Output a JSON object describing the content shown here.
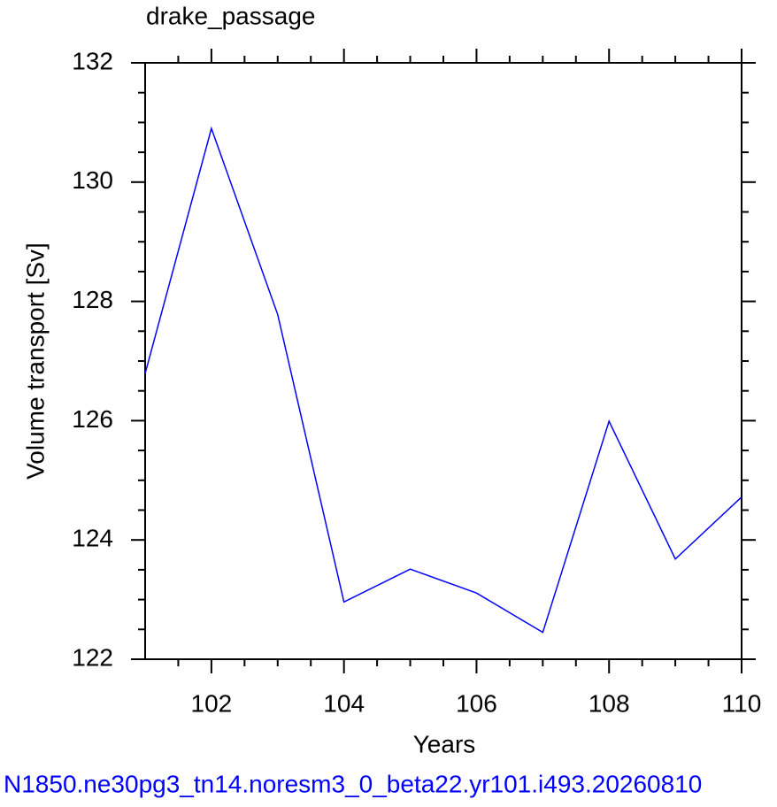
{
  "chart_data": {
    "type": "line",
    "title": "drake_passage",
    "x_label": "Years",
    "y_label": "Volume transport [Sv]",
    "footer": "N1850.ne30pg3_tn14.noresm3_0_beta22.yr101.i493.20260810",
    "x": [
      101,
      102,
      103,
      104,
      105,
      106,
      107,
      108,
      109,
      110
    ],
    "series": [
      {
        "color": "#0000ff",
        "values": [
          126.79,
          130.9,
          127.78,
          122.96,
          123.51,
          123.11,
          122.45,
          125.99,
          123.68,
          124.72
        ]
      }
    ],
    "xlim": [
      101,
      110
    ],
    "xticks": [
      102,
      104,
      106,
      108,
      110
    ],
    "xminorticks": [
      101.5,
      102.5,
      103,
      103.5,
      104.5,
      105,
      105.5,
      106.5,
      107,
      107.5,
      108.5,
      109,
      109.5
    ],
    "ylim": [
      122,
      132
    ],
    "yticks": [
      122,
      124,
      126,
      128,
      130,
      132
    ],
    "yminorticks": [
      122.5,
      123,
      123.5,
      124.5,
      125,
      125.5,
      126.5,
      127,
      127.5,
      128.5,
      129,
      129.5,
      130.5,
      131,
      131.5
    ]
  }
}
